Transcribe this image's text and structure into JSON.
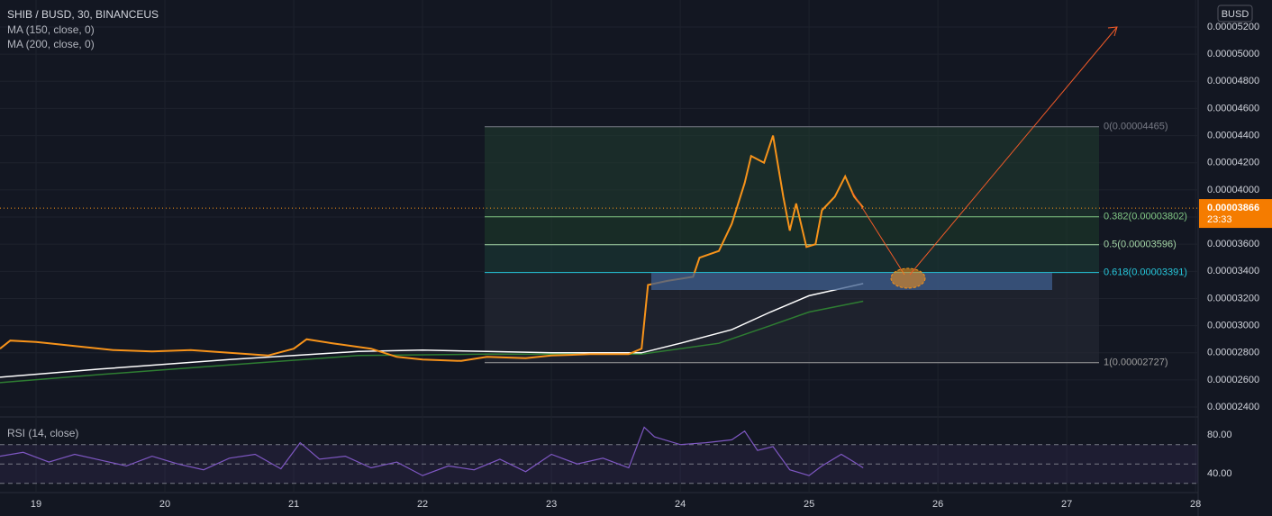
{
  "chart_data": {
    "type": "line",
    "title": "SHIB / BUSD, 30, BINANCEUS",
    "currency": "BUSD",
    "xlim": [
      18.72,
      28.02
    ],
    "xticks": [
      19,
      20,
      21,
      22,
      23,
      24,
      25,
      26,
      27,
      28
    ],
    "ylim": [
      2.334e-05,
      5.399e-05
    ],
    "yticks": [
      {
        "value": 2.4e-05,
        "label": "0.00002400"
      },
      {
        "value": 2.6e-05,
        "label": "0.00002600"
      },
      {
        "value": 2.8e-05,
        "label": "0.00002800"
      },
      {
        "value": 3e-05,
        "label": "0.00003000"
      },
      {
        "value": 3.2e-05,
        "label": "0.00003200"
      },
      {
        "value": 3.4e-05,
        "label": "0.00003400"
      },
      {
        "value": 3.6e-05,
        "label": "0.00003600"
      },
      {
        "value": 3.8e-05,
        "label": "0.00003800"
      },
      {
        "value": 4e-05,
        "label": "0.00004000"
      },
      {
        "value": 4.2e-05,
        "label": "0.00004200"
      },
      {
        "value": 4.4e-05,
        "label": "0.00004400"
      },
      {
        "value": 4.6e-05,
        "label": "0.00004600"
      },
      {
        "value": 4.8e-05,
        "label": "0.00004800"
      },
      {
        "value": 5e-05,
        "label": "0.00005000"
      },
      {
        "value": 5.2e-05,
        "label": "0.00005200"
      }
    ],
    "price": {
      "color": "#f7931a",
      "x": [
        18.72,
        18.8,
        19.0,
        19.3,
        19.6,
        19.9,
        20.2,
        20.5,
        20.8,
        21.0,
        21.1,
        21.3,
        21.6,
        21.8,
        22.0,
        22.3,
        22.5,
        22.8,
        23.0,
        23.3,
        23.6,
        23.7,
        23.75,
        23.9,
        24.1,
        24.15,
        24.3,
        24.4,
        24.5,
        24.55,
        24.65,
        24.72,
        24.8,
        24.85,
        24.9,
        24.98,
        25.05,
        25.1,
        25.2,
        25.28,
        25.35,
        25.42
      ],
      "values": [
        2.83e-05,
        2.89e-05,
        2.88e-05,
        2.85e-05,
        2.82e-05,
        2.81e-05,
        2.82e-05,
        2.8e-05,
        2.78e-05,
        2.83e-05,
        2.9e-05,
        2.87e-05,
        2.83e-05,
        2.77e-05,
        2.75e-05,
        2.74e-05,
        2.77e-05,
        2.76e-05,
        2.78e-05,
        2.79e-05,
        2.79e-05,
        2.83e-05,
        3.3e-05,
        3.33e-05,
        3.36e-05,
        3.5e-05,
        3.55e-05,
        3.75e-05,
        4.05e-05,
        4.25e-05,
        4.2e-05,
        4.4e-05,
        3.95e-05,
        3.7e-05,
        3.9e-05,
        3.58e-05,
        3.6e-05,
        3.85e-05,
        3.95e-05,
        4.1e-05,
        3.95e-05,
        3.87e-05
      ]
    },
    "series": [
      {
        "name": "MA (150, close, 0)",
        "color": "#ffffff",
        "x": [
          18.72,
          19.5,
          20.5,
          21.5,
          22.0,
          22.5,
          23.0,
          23.7,
          24.0,
          24.4,
          24.7,
          25.0,
          25.42
        ],
        "values": [
          2.62e-05,
          2.68e-05,
          2.75e-05,
          2.81e-05,
          2.82e-05,
          2.81e-05,
          2.8e-05,
          2.8e-05,
          2.87e-05,
          2.97e-05,
          3.1e-05,
          3.22e-05,
          3.31e-05
        ]
      },
      {
        "name": "MA (200, close, 0)",
        "color": "#2e7d32",
        "x": [
          18.72,
          19.5,
          20.5,
          21.5,
          22.5,
          23.7,
          24.3,
          24.7,
          25.0,
          25.42
        ],
        "values": [
          2.58e-05,
          2.64e-05,
          2.71e-05,
          2.78e-05,
          2.79e-05,
          2.79e-05,
          2.87e-05,
          3e-05,
          3.1e-05,
          3.18e-05
        ]
      }
    ],
    "last_price": {
      "value": 3.866e-05,
      "label": "0.00003866"
    },
    "countdown": "23:33",
    "fib_levels": [
      {
        "label": "0(0.00004465)",
        "value": 4.465e-05,
        "color": "#787b86"
      },
      {
        "label": "0.382(0.00003802)",
        "value": 3.802e-05,
        "color": "#81c784"
      },
      {
        "label": "0.5(0.00003596)",
        "value": 3.596e-05,
        "color": "#a5d6a7"
      },
      {
        "label": "0.618(0.00003391)",
        "value": 3.391e-05,
        "color": "#26c6da"
      },
      {
        "label": "1(0.00002727)",
        "value": 2.727e-05,
        "color": "#9e9e9e"
      }
    ],
    "rsi": {
      "name": "RSI (14, close)",
      "color": "#7e57c2",
      "ylim": [
        21.4,
        99.5
      ],
      "yticks": [
        {
          "value": 80,
          "label": "80.00"
        },
        {
          "value": 40,
          "label": "40.00"
        }
      ],
      "bands": [
        70,
        50,
        30
      ],
      "x": [
        18.72,
        18.9,
        19.1,
        19.3,
        19.5,
        19.7,
        19.9,
        20.1,
        20.3,
        20.5,
        20.7,
        20.9,
        21.05,
        21.2,
        21.4,
        21.6,
        21.8,
        22.0,
        22.2,
        22.4,
        22.6,
        22.8,
        23.0,
        23.2,
        23.4,
        23.6,
        23.72,
        23.8,
        24.0,
        24.2,
        24.4,
        24.5,
        24.6,
        24.72,
        24.85,
        25.0,
        25.1,
        25.25,
        25.35,
        25.42
      ],
      "values": [
        58,
        62,
        52,
        60,
        54,
        48,
        58,
        50,
        44,
        56,
        60,
        45,
        72,
        55,
        58,
        46,
        52,
        38,
        48,
        44,
        55,
        42,
        60,
        50,
        56,
        46,
        88,
        78,
        70,
        72,
        75,
        84,
        64,
        68,
        44,
        38,
        48,
        60,
        52,
        46
      ]
    }
  }
}
